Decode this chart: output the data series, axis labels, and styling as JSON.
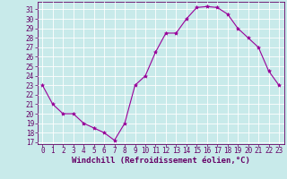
{
  "x": [
    0,
    1,
    2,
    3,
    4,
    5,
    6,
    7,
    8,
    9,
    10,
    11,
    12,
    13,
    14,
    15,
    16,
    17,
    18,
    19,
    20,
    21,
    22,
    23
  ],
  "y": [
    23,
    21,
    20,
    20,
    19,
    18.5,
    18,
    17.2,
    19,
    23,
    24,
    26.5,
    28.5,
    28.5,
    30,
    31.2,
    31.3,
    31.2,
    30.5,
    29,
    28,
    27,
    24.5,
    23
  ],
  "line_color": "#990099",
  "marker": "*",
  "marker_size": 3,
  "bg_color": "#c8eaea",
  "grid_color": "#ffffff",
  "xlabel": "Windchill (Refroidissement éolien,°C)",
  "ylim_min": 16.8,
  "ylim_max": 31.8,
  "xlim_min": -0.5,
  "xlim_max": 23.5,
  "yticks": [
    17,
    18,
    19,
    20,
    21,
    22,
    23,
    24,
    25,
    26,
    27,
    28,
    29,
    30,
    31
  ],
  "xticks": [
    0,
    1,
    2,
    3,
    4,
    5,
    6,
    7,
    8,
    9,
    10,
    11,
    12,
    13,
    14,
    15,
    16,
    17,
    18,
    19,
    20,
    21,
    22,
    23
  ],
  "tick_fontsize": 5.5,
  "xlabel_fontsize": 6.5,
  "axis_color": "#660066",
  "spine_color": "#660066",
  "line_width": 0.8
}
